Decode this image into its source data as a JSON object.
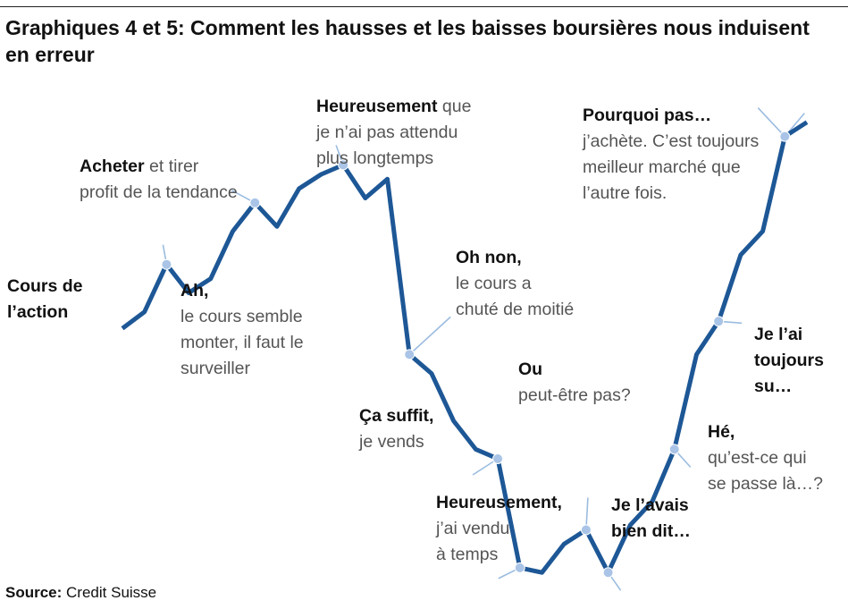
{
  "title": "Graphiques 4 et 5: Comment les hausses et les baisses boursières nous induisent en erreur",
  "source": {
    "label": "Source:",
    "text": "Credit Suisse"
  },
  "colors": {
    "line": "#1d5796",
    "marker": "#a9c4e6",
    "leader": "#9bbce0",
    "text_bold": "#111111",
    "text_light": "#555555"
  },
  "annotations": {
    "cours": {
      "l1": "Cours de",
      "l2": "l’action"
    },
    "ah": {
      "bold": "Ah,",
      "l1": "le cours semble",
      "l2": "monter, il faut le",
      "l3": "surveiller"
    },
    "acheter": {
      "bold": "Acheter",
      "rest": " et tirer",
      "l1": "profit de la tendance"
    },
    "heureusement1": {
      "bold": "Heureusement",
      "rest": " que",
      "l1": "je n’ai pas attendu",
      "l2": "plus longtemps"
    },
    "ohnon": {
      "bold": "Oh non,",
      "l1": "le cours a",
      "l2": "chuté de moitié"
    },
    "casuffit": {
      "bold": "Ça suffit,",
      "l1": "je vends"
    },
    "heureusement2": {
      "bold": "Heureusement,",
      "l1": "j’ai vendu",
      "l2": "à temps"
    },
    "ou": {
      "bold": "Ou",
      "l1": "peut-être pas?"
    },
    "jelavais": {
      "l1": "Je l’avais",
      "l2": "bien dit…"
    },
    "he": {
      "bold": "Hé,",
      "l1": "qu’est-ce qui",
      "l2": "se passe là…?"
    },
    "jelai": {
      "l1": "Je l’ai",
      "l2": "toujours",
      "l3": "su…"
    },
    "pourquoi": {
      "bold": "Pourquoi pas…",
      "l1": "j’achète. C’est toujours",
      "l2": "meilleur marché que",
      "l3": "l’autre fois."
    }
  },
  "chart_data": {
    "type": "line",
    "title": "Graphiques 4 et 5: Comment les hausses et les baisses boursières nous induisent en erreur",
    "xlabel": "",
    "ylabel": "",
    "series": [
      {
        "name": "Cours de l’action",
        "values": [
          17.5,
          21,
          31,
          25,
          28,
          38,
          44,
          39,
          47,
          50,
          52,
          45,
          49,
          12,
          8,
          -2,
          -8,
          -10,
          -33,
          -34,
          -28,
          -25,
          -34,
          -24,
          -19,
          -8,
          12,
          19,
          33,
          38,
          58,
          61
        ]
      }
    ],
    "markers": [
      {
        "index": 2,
        "label": "Ah, le cours semble monter, il faut le surveiller"
      },
      {
        "index": 6,
        "label": "Acheter et tirer profit de la tendance"
      },
      {
        "index": 10,
        "label": "Heureusement que je n’ai pas attendu plus longtemps"
      },
      {
        "index": 13,
        "label": "Oh non, le cours a chuté de moitié"
      },
      {
        "index": 17,
        "label": "Ça suffit, je vends"
      },
      {
        "index": 18,
        "label": "Heureusement, j’ai vendu à temps"
      },
      {
        "index": 21,
        "label": "Ou peut-être pas?"
      },
      {
        "index": 22,
        "label": "Je l’avais bien dit…"
      },
      {
        "index": 25,
        "label": "Hé, qu’est-ce qui se passe là…?"
      },
      {
        "index": 27,
        "label": "Je l’ai toujours su…"
      },
      {
        "index": 30,
        "label": "Pourquoi pas… j’achète. C’est toujours meilleur marché que l’autre fois."
      }
    ],
    "axes_visible": false,
    "grid": false,
    "legend": "none"
  }
}
